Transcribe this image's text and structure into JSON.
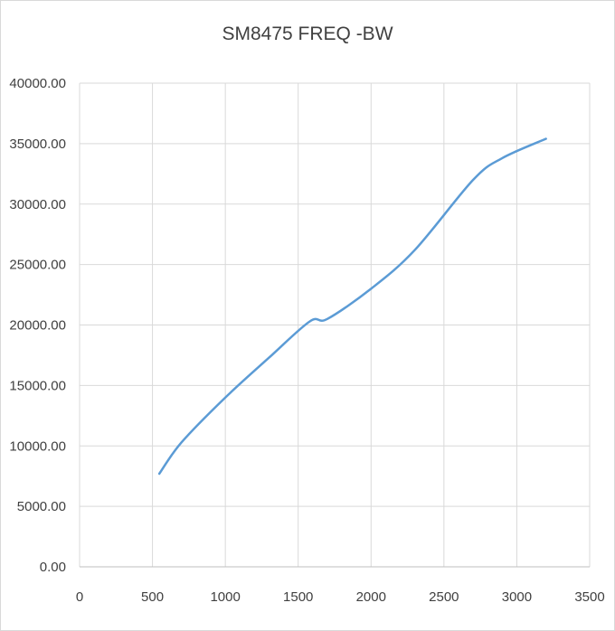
{
  "chart_data": {
    "type": "scatter",
    "title": "SM8475 FREQ -BW",
    "xlabel": "",
    "ylabel": "",
    "xlim": [
      0,
      3500
    ],
    "ylim": [
      0,
      40000
    ],
    "x_ticks": [
      0,
      500,
      1000,
      1500,
      2000,
      2500,
      3000,
      3500
    ],
    "x_tick_labels": [
      "0",
      "500",
      "1000",
      "1500",
      "2000",
      "2500",
      "3000",
      "3500"
    ],
    "y_ticks": [
      0,
      5000,
      10000,
      15000,
      20000,
      25000,
      30000,
      35000,
      40000
    ],
    "y_tick_labels": [
      "0.00",
      "5000.00",
      "10000.00",
      "15000.00",
      "20000.00",
      "25000.00",
      "30000.00",
      "35000.00",
      "40000.00"
    ],
    "grid": true,
    "smooth_line": true,
    "series": [
      {
        "color": "#5b9bd5",
        "points": [
          {
            "x": 547,
            "y": 7700
          },
          {
            "x": 700,
            "y": 10300
          },
          {
            "x": 1000,
            "y": 14000
          },
          {
            "x": 1300,
            "y": 17300
          },
          {
            "x": 1580,
            "y": 20300
          },
          {
            "x": 1700,
            "y": 20500
          },
          {
            "x": 2000,
            "y": 23000
          },
          {
            "x": 2300,
            "y": 26200
          },
          {
            "x": 2700,
            "y": 32000
          },
          {
            "x": 2900,
            "y": 33800
          },
          {
            "x": 3200,
            "y": 35400
          }
        ]
      }
    ]
  }
}
